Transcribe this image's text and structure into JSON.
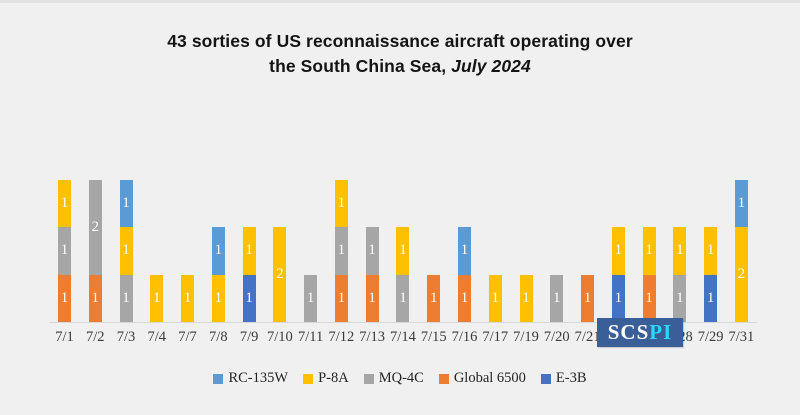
{
  "background": "#F0F0F0",
  "title": {
    "line1": "43 sorties of US reconnaissance aircraft operating over",
    "line2_regular": "the South China Sea, ",
    "line2_italic": "July 2024"
  },
  "chart_data": {
    "type": "bar",
    "stacked": true,
    "title": "43 sorties of US reconnaissance aircraft operating over the South China Sea, July 2024",
    "total_sorties": 43,
    "ylim": [
      0,
      3
    ],
    "grid": false,
    "legend_position": "bottom",
    "stack_order_bottom_to_top": [
      "E-3B",
      "Global 6500",
      "MQ-4C",
      "P-8A",
      "RC-135W"
    ],
    "series_colors": {
      "RC-135W": "#5B9BD5",
      "P-8A": "#FFC000",
      "MQ-4C": "#A6A6A6",
      "Global 6500": "#ED7D31",
      "E-3B": "#4472C4"
    },
    "categories": [
      "7/1",
      "7/2",
      "7/3",
      "7/4",
      "7/7",
      "7/8",
      "7/9",
      "7/10",
      "7/11",
      "7/12",
      "7/13",
      "7/14",
      "7/15",
      "7/16",
      "7/17",
      "7/19",
      "7/20",
      "7/21",
      "",
      "",
      "7/28",
      "7/29",
      "7/31"
    ],
    "bars": [
      {
        "date": "7/1",
        "segments": [
          [
            "Global 6500",
            1
          ],
          [
            "MQ-4C",
            1
          ],
          [
            "P-8A",
            1
          ]
        ]
      },
      {
        "date": "7/2",
        "segments": [
          [
            "Global 6500",
            1
          ],
          [
            "MQ-4C",
            2
          ]
        ]
      },
      {
        "date": "7/3",
        "segments": [
          [
            "MQ-4C",
            1
          ],
          [
            "P-8A",
            1
          ],
          [
            "RC-135W",
            1
          ]
        ]
      },
      {
        "date": "7/4",
        "segments": [
          [
            "P-8A",
            1
          ]
        ]
      },
      {
        "date": "7/7",
        "segments": [
          [
            "P-8A",
            1
          ]
        ]
      },
      {
        "date": "7/8",
        "segments": [
          [
            "P-8A",
            1
          ],
          [
            "RC-135W",
            1
          ]
        ]
      },
      {
        "date": "7/9",
        "segments": [
          [
            "E-3B",
            1
          ],
          [
            "P-8A",
            1
          ]
        ]
      },
      {
        "date": "7/10",
        "segments": [
          [
            "P-8A",
            2
          ]
        ]
      },
      {
        "date": "7/11",
        "segments": [
          [
            "MQ-4C",
            1
          ]
        ]
      },
      {
        "date": "7/12",
        "segments": [
          [
            "Global 6500",
            1
          ],
          [
            "MQ-4C",
            1
          ],
          [
            "P-8A",
            1
          ]
        ]
      },
      {
        "date": "7/13",
        "segments": [
          [
            "Global 6500",
            1
          ],
          [
            "MQ-4C",
            1
          ]
        ]
      },
      {
        "date": "7/14",
        "segments": [
          [
            "MQ-4C",
            1
          ],
          [
            "P-8A",
            1
          ]
        ]
      },
      {
        "date": "7/15",
        "segments": [
          [
            "Global 6500",
            1
          ]
        ]
      },
      {
        "date": "7/16",
        "segments": [
          [
            "Global 6500",
            1
          ],
          [
            "RC-135W",
            1
          ]
        ]
      },
      {
        "date": "7/17",
        "segments": [
          [
            "P-8A",
            1
          ]
        ]
      },
      {
        "date": "7/19",
        "segments": [
          [
            "P-8A",
            1
          ]
        ]
      },
      {
        "date": "7/20",
        "segments": [
          [
            "MQ-4C",
            1
          ]
        ]
      },
      {
        "date": "7/21",
        "segments": [
          [
            "Global 6500",
            1
          ]
        ]
      },
      {
        "date": "",
        "segments": [
          [
            "E-3B",
            1
          ],
          [
            "P-8A",
            1
          ]
        ]
      },
      {
        "date": "",
        "segments": [
          [
            "Global 6500",
            1
          ],
          [
            "P-8A",
            1
          ]
        ]
      },
      {
        "date": "7/28",
        "segments": [
          [
            "MQ-4C",
            1
          ],
          [
            "P-8A",
            1
          ]
        ]
      },
      {
        "date": "7/29",
        "segments": [
          [
            "E-3B",
            1
          ],
          [
            "P-8A",
            1
          ]
        ]
      },
      {
        "date": "7/31",
        "segments": [
          [
            "P-8A",
            2
          ],
          [
            "RC-135W",
            1
          ]
        ]
      }
    ]
  },
  "legend": {
    "items": [
      {
        "label": "RC-135W",
        "color": "#5B9BD5"
      },
      {
        "label": "P-8A",
        "color": "#FFC000"
      },
      {
        "label": "MQ-4C",
        "color": "#A6A6A6"
      },
      {
        "label": "Global 6500",
        "color": "#ED7D31"
      },
      {
        "label": "E-3B",
        "color": "#4472C4"
      }
    ]
  },
  "watermark": {
    "text_primary": "SCS",
    "text_secondary": "PI",
    "bg_color": "#3A5F98",
    "primary_color": "#FFFFFF",
    "secondary_color": "#2BD7F8"
  }
}
